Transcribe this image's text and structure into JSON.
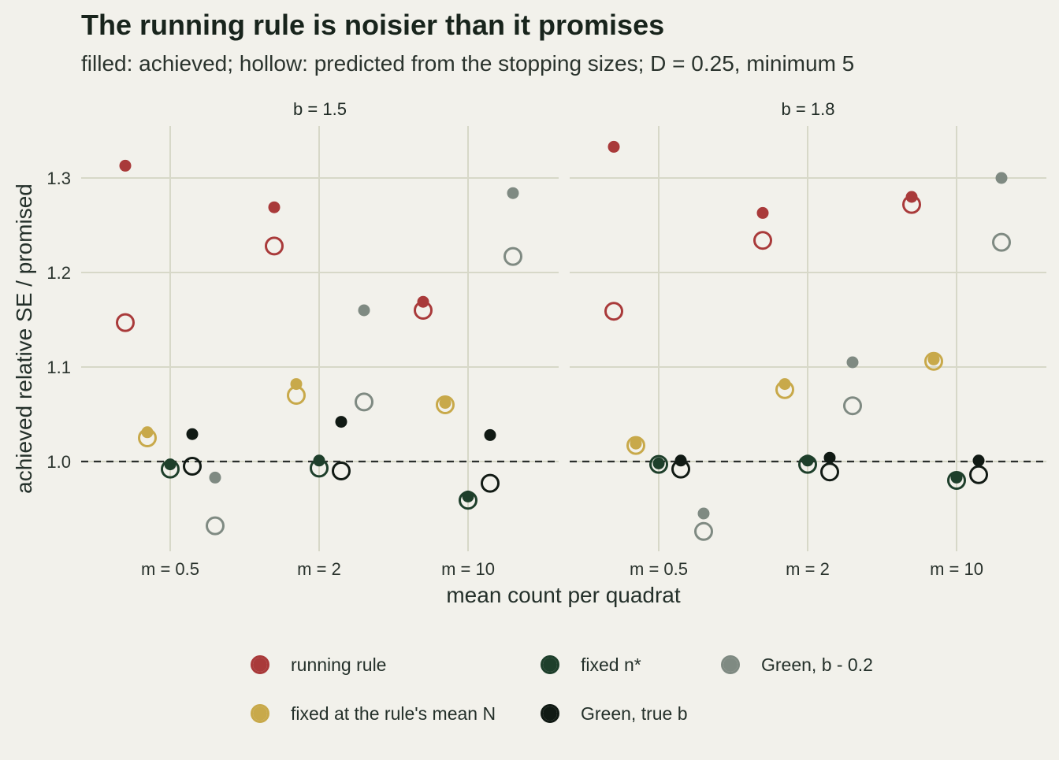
{
  "chart_data": {
    "type": "scatter",
    "title": "The running rule is noisier than it promises",
    "subtitle": "filled: achieved; hollow: predicted from the stopping sizes; D = 0.25, minimum 5",
    "xlabel": "mean count per quadrat",
    "ylabel": "achieved relative SE / promised",
    "ylim": [
      0.905,
      1.355
    ],
    "yticks": [
      1.0,
      1.1,
      1.2,
      1.3
    ],
    "ytick_labels": [
      "1.0",
      "1.1",
      "1.2",
      "1.3"
    ],
    "reference_line": 1.0,
    "categories": [
      "m = 0.5",
      "m = 2",
      "m = 10"
    ],
    "panels": [
      "b = 1.5",
      "b = 1.8"
    ],
    "grid": true,
    "legend_position": "bottom",
    "series": [
      {
        "name": "running rule",
        "color": "#a93a3a",
        "achieved": [
          [
            1.313,
            1.269,
            1.169
          ],
          [
            1.333,
            1.263,
            1.28
          ]
        ],
        "predicted": [
          [
            1.147,
            1.228,
            1.16
          ],
          [
            1.159,
            1.234,
            1.272
          ]
        ]
      },
      {
        "name": "fixed at the rule's mean N",
        "color": "#c8a94a",
        "achieved": [
          [
            1.031,
            1.082,
            1.062
          ],
          [
            1.019,
            1.082,
            1.108
          ]
        ],
        "predicted": [
          [
            1.025,
            1.07,
            1.06
          ],
          [
            1.017,
            1.076,
            1.106
          ]
        ]
      },
      {
        "name": "fixed n*",
        "color": "#1e3f2b",
        "achieved": [
          [
            0.997,
            1.001,
            0.963
          ],
          [
            0.998,
            1.001,
            0.983
          ]
        ],
        "predicted": [
          [
            0.992,
            0.993,
            0.959
          ],
          [
            0.997,
            0.997,
            0.98
          ]
        ]
      },
      {
        "name": "Green, true b",
        "color": "#111a14",
        "achieved": [
          [
            1.029,
            1.042,
            1.028
          ],
          [
            1.001,
            1.004,
            1.001
          ]
        ],
        "predicted": [
          [
            0.995,
            0.99,
            0.977
          ],
          [
            0.992,
            0.989,
            0.986
          ]
        ]
      },
      {
        "name": "Green, b - 0.2",
        "color": "#7f8a82",
        "achieved": [
          [
            0.983,
            1.16,
            1.284
          ],
          [
            0.945,
            1.105,
            1.3
          ]
        ],
        "predicted": [
          [
            0.932,
            1.063,
            1.217
          ],
          [
            0.926,
            1.059,
            1.232
          ]
        ]
      }
    ],
    "legend_order": [
      "running rule",
      "fixed n*",
      "Green, b - 0.2",
      "fixed at the rule's mean N",
      "Green, true b"
    ]
  }
}
